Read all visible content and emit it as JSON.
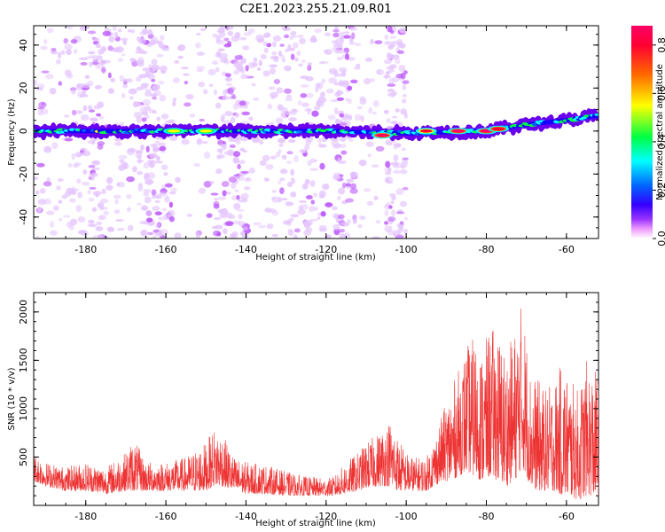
{
  "figure": {
    "title": "C2E1.2023.255.21.09.R01"
  },
  "colors": {
    "snr_line": "#ee3333",
    "colormap": [
      "#ffffff",
      "#ee99ff",
      "#9933ff",
      "#3300ff",
      "#0066ff",
      "#00ffff",
      "#00ff44",
      "#ffff00",
      "#ff6600",
      "#ff0033",
      "#ff0066"
    ]
  },
  "chart_data": [
    {
      "type": "heatmap",
      "title": "",
      "xlabel": "Height of straight line (km)",
      "ylabel": "Frequency (Hz)",
      "xlim": [
        -193,
        -52
      ],
      "ylim": [
        -50,
        49
      ],
      "xticks": [
        -180,
        -160,
        -140,
        -120,
        -100,
        -80,
        -60
      ],
      "yticks": [
        -40,
        -20,
        0,
        20,
        40
      ],
      "colorbar": {
        "label": "Normalized spectral amplitude",
        "range": [
          0.0,
          0.88
        ],
        "ticks": [
          0.0,
          0.2,
          0.4,
          0.6,
          0.8
        ]
      },
      "main_band": {
        "description_points": [
          [
            -193,
            0
          ],
          [
            -120,
            0
          ],
          [
            -100,
            -1
          ],
          [
            -80,
            0
          ],
          [
            -70,
            3
          ],
          [
            -60,
            5
          ],
          [
            -53,
            7
          ]
        ],
        "peak_regions": [
          {
            "x": -106,
            "y": -2,
            "amplitude": 0.85
          },
          {
            "x": -87,
            "y": 0,
            "amplitude": 0.88
          },
          {
            "x": -80,
            "y": 0,
            "amplitude": 0.85
          },
          {
            "x": -77,
            "y": 1,
            "amplitude": 0.8
          },
          {
            "x": -95,
            "y": 0,
            "amplitude": 0.7
          },
          {
            "x": -150,
            "y": 0,
            "amplitude": 0.55
          },
          {
            "x": -158,
            "y": 0,
            "amplitude": 0.5
          }
        ]
      },
      "noise_columns_x": [
        [
          -185,
          -170
        ],
        [
          -167,
          -160
        ],
        [
          -147,
          -140
        ],
        [
          -135,
          -120
        ],
        [
          -118,
          -113
        ],
        [
          -105,
          -100
        ]
      ]
    },
    {
      "type": "line",
      "title": "",
      "xlabel": "Height of straight line (km)",
      "ylabel": "SNR (10 * v/v)",
      "xlim": [
        -193,
        -52
      ],
      "ylim": [
        0,
        2200
      ],
      "xticks": [
        -180,
        -160,
        -140,
        -120,
        -100,
        -80,
        -60
      ],
      "yticks": [
        500,
        1000,
        1500,
        2000
      ],
      "series": [
        {
          "envelope": [
            [
              -193,
              250,
              550
            ],
            [
              -190,
              200,
              450
            ],
            [
              -185,
              150,
              400
            ],
            [
              -180,
              150,
              450
            ],
            [
              -175,
              120,
              400
            ],
            [
              -170,
              150,
              550
            ],
            [
              -168,
              150,
              700
            ],
            [
              -165,
              150,
              450
            ],
            [
              -160,
              150,
              450
            ],
            [
              -155,
              150,
              500
            ],
            [
              -150,
              150,
              650
            ],
            [
              -148,
              200,
              800
            ],
            [
              -146,
              200,
              750
            ],
            [
              -143,
              150,
              500
            ],
            [
              -140,
              120,
              450
            ],
            [
              -135,
              120,
              420
            ],
            [
              -130,
              100,
              350
            ],
            [
              -125,
              100,
              300
            ],
            [
              -120,
              100,
              280
            ],
            [
              -118,
              100,
              300
            ],
            [
              -115,
              120,
              450
            ],
            [
              -112,
              150,
              550
            ],
            [
              -110,
              180,
              650
            ],
            [
              -107,
              200,
              750
            ],
            [
              -104,
              200,
              900
            ],
            [
              -102,
              150,
              700
            ],
            [
              -100,
              150,
              550
            ],
            [
              -98,
              150,
              500
            ],
            [
              -95,
              150,
              500
            ],
            [
              -93,
              200,
              700
            ],
            [
              -91,
              250,
              950
            ],
            [
              -89,
              250,
              1200
            ],
            [
              -87,
              300,
              1400
            ],
            [
              -85,
              350,
              1650
            ],
            [
              -83,
              300,
              1750
            ],
            [
              -81,
              250,
              1600
            ],
            [
              -79,
              300,
              1850
            ],
            [
              -77,
              250,
              1800
            ],
            [
              -75,
              200,
              1600
            ],
            [
              -73,
              250,
              1800
            ],
            [
              -71,
              400,
              2150
            ],
            [
              -69,
              200,
              1400
            ],
            [
              -67,
              150,
              1300
            ],
            [
              -65,
              150,
              1200
            ],
            [
              -63,
              150,
              1300
            ],
            [
              -61,
              100,
              1500
            ],
            [
              -59,
              100,
              1300
            ],
            [
              -57,
              50,
              1200
            ],
            [
              -55,
              100,
              1500
            ],
            [
              -53,
              100,
              1400
            ]
          ]
        }
      ]
    }
  ]
}
